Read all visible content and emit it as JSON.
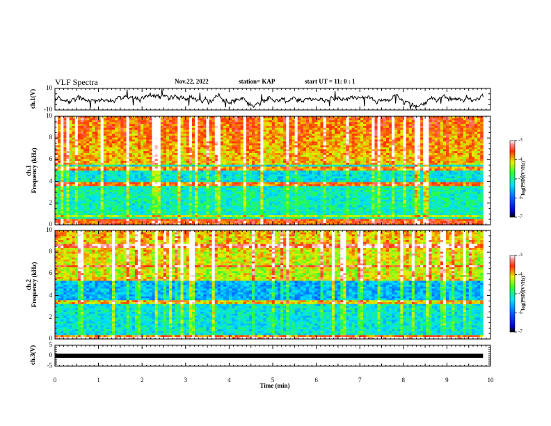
{
  "header": {
    "title": "VLF Spectra",
    "date": "Nov.22, 2022",
    "station": "station= KAP",
    "start": "start  UT =   11: 0  : 1"
  },
  "chart_data": [
    {
      "type": "line",
      "panel": "ch1-waveform",
      "ylabel": "ch.1(V)",
      "ylim": [
        -10,
        10
      ],
      "yticks": [
        "10",
        "-10"
      ],
      "xlim": [
        0,
        10
      ],
      "x_extent": [
        0,
        9.83
      ],
      "line_color": "#000000"
    },
    {
      "type": "heatmap",
      "panel": "ch1-spectrogram",
      "ylabel_line1": "ch.1",
      "ylabel_line2": "Frequency (kHz)",
      "ylim": [
        0,
        10
      ],
      "yticks": [
        "0",
        "2",
        "4",
        "6",
        "8",
        "10"
      ],
      "xlim": [
        0,
        10
      ],
      "x_extent": [
        0,
        9.83
      ],
      "colorbar": {
        "label": "log(PSD)(V²/Hz)",
        "range": [
          -7,
          -3
        ],
        "ticks": [
          "-3",
          "-4",
          "-5",
          "-6",
          "-7"
        ]
      }
    },
    {
      "type": "heatmap",
      "panel": "ch2-spectrogram",
      "ylabel_line1": "ch.2",
      "ylabel_line2": "Frequency (kHz)",
      "ylim": [
        0,
        10
      ],
      "yticks": [
        "0",
        "2",
        "4",
        "6",
        "8",
        "10"
      ],
      "xlim": [
        0,
        10
      ],
      "x_extent": [
        0,
        9.83
      ],
      "colorbar": {
        "label": "log(PSD)(V²/Hz)",
        "range": [
          -7,
          -3
        ],
        "ticks": [
          "-3",
          "-4",
          "-5",
          "-6",
          "-7"
        ]
      }
    },
    {
      "type": "line",
      "panel": "ch3-waveform",
      "ylabel": "ch.3(V)",
      "ylim": [
        -5,
        5
      ],
      "yticks": [
        "5",
        "0",
        "-5"
      ],
      "xlim": [
        0,
        10
      ],
      "x_extent": [
        0,
        9.83
      ],
      "level": 0,
      "line_color": "#000000"
    }
  ],
  "xaxis": {
    "label": "Time  (min)",
    "ticks": [
      "0",
      "1",
      "2",
      "3",
      "4",
      "5",
      "6",
      "7",
      "8",
      "9",
      "10"
    ]
  }
}
